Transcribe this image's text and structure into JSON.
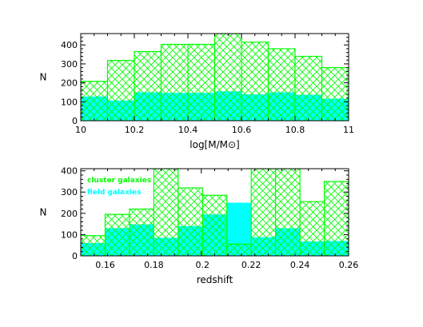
{
  "colors": {
    "cluster": "#00ff00",
    "field": "#00ffff",
    "axes": "#000000",
    "background": "#ffffff"
  },
  "chart_data": [
    {
      "type": "bar",
      "subtype": "histogram",
      "xlabel": "log[M/M⊙]",
      "ylabel": "N",
      "xlim": [
        10,
        11
      ],
      "ylim": [
        0,
        460
      ],
      "xticks": [
        10,
        10.2,
        10.4,
        10.6,
        10.8,
        11
      ],
      "xtick_labels": [
        "10",
        "10.2",
        "10.4",
        "10.6",
        "10.8",
        "11"
      ],
      "yticks": [
        0,
        100,
        200,
        300,
        400
      ],
      "ytick_labels": [
        "0",
        "100",
        "200",
        "300",
        "400"
      ],
      "bin_edges": [
        10,
        10.1,
        10.2,
        10.3,
        10.4,
        10.5,
        10.6,
        10.7,
        10.8,
        10.9,
        11
      ],
      "series": [
        {
          "name": "cluster galaxies",
          "style": "hatched",
          "values": [
            208,
            318,
            365,
            403,
            403,
            460,
            415,
            380,
            340,
            280
          ]
        },
        {
          "name": "field galaxies",
          "style": "filled",
          "values": [
            128,
            107,
            150,
            147,
            147,
            155,
            140,
            150,
            137,
            116
          ]
        }
      ]
    },
    {
      "type": "bar",
      "subtype": "histogram",
      "xlabel": "redshift",
      "ylabel": "N",
      "xlim": [
        0.15,
        0.26
      ],
      "ylim": [
        0,
        410
      ],
      "xticks": [
        0.16,
        0.18,
        0.2,
        0.22,
        0.24,
        0.26
      ],
      "xtick_labels": [
        "0.16",
        "0.18",
        "0.2",
        "0.22",
        "0.24",
        "0.26"
      ],
      "yticks": [
        0,
        100,
        200,
        300,
        400
      ],
      "ytick_labels": [
        "0",
        "100",
        "200",
        "300",
        "400"
      ],
      "bin_edges": [
        0.15,
        0.16,
        0.17,
        0.18,
        0.19,
        0.2,
        0.21,
        0.22,
        0.23,
        0.24,
        0.25,
        0.26
      ],
      "legend": {
        "placement": "top-left"
      },
      "series": [
        {
          "name": "cluster galaxies",
          "style": "hatched",
          "values": [
            95,
            195,
            220,
            410,
            320,
            285,
            55,
            410,
            410,
            255,
            350
          ]
        },
        {
          "name": "field galaxies",
          "style": "filled",
          "values": [
            60,
            130,
            148,
            85,
            140,
            195,
            250,
            88,
            130,
            68,
            70
          ]
        }
      ]
    }
  ]
}
